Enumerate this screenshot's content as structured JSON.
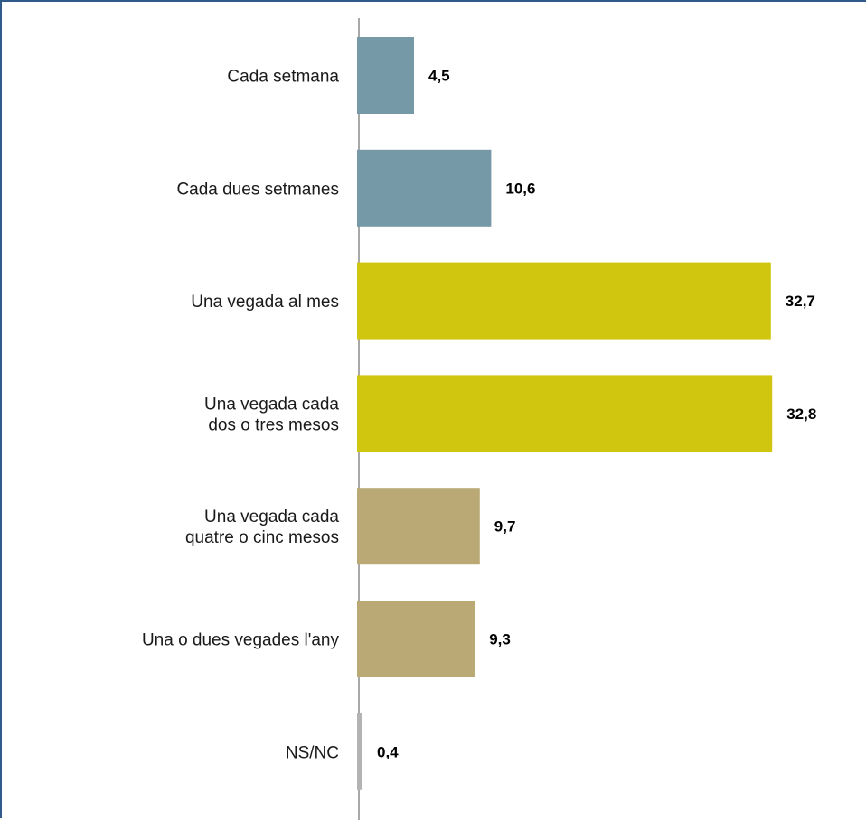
{
  "chart_data": {
    "type": "bar",
    "orientation": "horizontal",
    "categories": [
      [
        "Cada setmana"
      ],
      [
        "Cada dues setmanes"
      ],
      [
        "Una vegada al mes"
      ],
      [
        "Una vegada cada",
        "dos o tres mesos"
      ],
      [
        "Una vegada cada",
        "quatre o cinc mesos"
      ],
      [
        "Una o dues vegades l'any"
      ],
      [
        "NS/NC"
      ]
    ],
    "values": [
      4.5,
      10.6,
      32.7,
      32.8,
      9.7,
      9.3,
      0.4
    ],
    "value_labels": [
      "4,5",
      "10,6",
      "32,7",
      "32,8",
      "9,7",
      "9,3",
      "0,4"
    ],
    "colors": [
      "#7599a6",
      "#7599a6",
      "#d1c60f",
      "#d1c60f",
      "#baa974",
      "#baa974",
      "#b3b3b3"
    ],
    "xlim": [
      0,
      35
    ],
    "grid": false,
    "legend": "none",
    "title": "",
    "xlabel": "",
    "ylabel": ""
  }
}
